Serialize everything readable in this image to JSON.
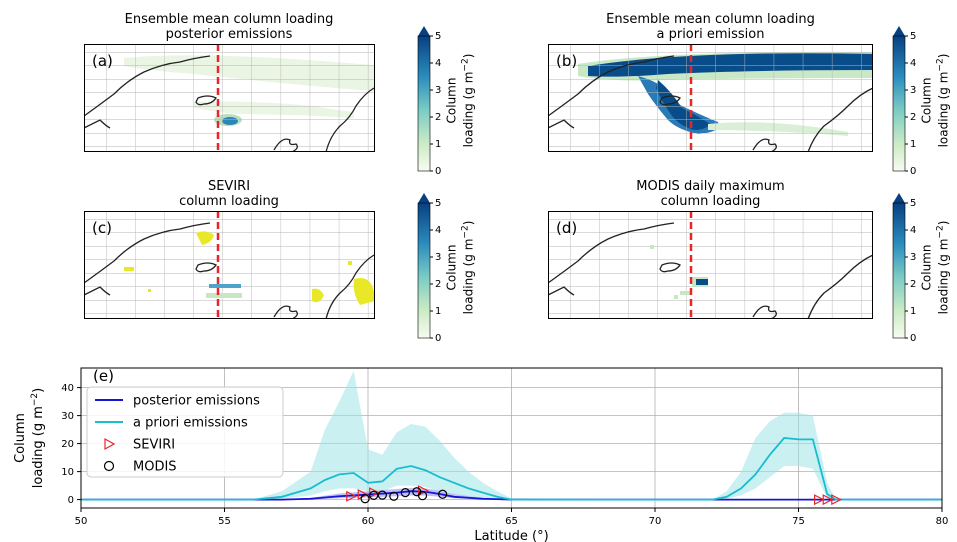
{
  "panels": [
    {
      "id": "a",
      "title": "Ensemble mean column loading\nposterior emissions",
      "panel_label": "(a)",
      "colorbar_label": "Column\nloading (g m",
      "colorbar_label_sup": "−2",
      "colorbar_ticks": [
        "0",
        "1",
        "2",
        "3",
        "4",
        "5"
      ]
    },
    {
      "id": "b",
      "title": "Ensemble mean column loading\na priori emission",
      "panel_label": "(b)",
      "colorbar_label": "Column\nloading (g m",
      "colorbar_label_sup": "−2",
      "colorbar_ticks": [
        "0",
        "1",
        "2",
        "3",
        "4",
        "5"
      ]
    },
    {
      "id": "c",
      "title": "SEVIRI\ncolumn loading",
      "panel_label": "(c)",
      "colorbar_label": "Column\nloading (g m",
      "colorbar_label_sup": "−2",
      "colorbar_ticks": [
        "0",
        "1",
        "2",
        "3",
        "4",
        "5"
      ]
    },
    {
      "id": "d",
      "title": "MODIS daily maximum\ncolumn loading",
      "panel_label": "(d)",
      "colorbar_label": "Column\nloading (g m",
      "colorbar_label_sup": "−2",
      "colorbar_ticks": [
        "0",
        "1",
        "2",
        "3",
        "4",
        "5"
      ]
    }
  ],
  "chart_data": {
    "type": "line",
    "panel_label": "(e)",
    "xlabel": "Latitude (°)",
    "ylabel_line1": "Column",
    "ylabel_line2": "loading (g m",
    "ylabel_sup": "−2",
    "xlim": [
      50,
      80
    ],
    "ylim": [
      -3,
      47
    ],
    "x_ticks": [
      50,
      55,
      60,
      65,
      70,
      75,
      80
    ],
    "y_ticks": [
      0,
      10,
      20,
      30,
      40
    ],
    "grid": true,
    "legend_position": "top-left",
    "series": [
      {
        "name": "posterior emissions",
        "style": "line",
        "color": "#1515d6",
        "x": [
          50,
          57,
          58,
          59,
          60,
          61,
          61.5,
          62,
          62.5,
          63,
          64,
          65,
          80
        ],
        "y": [
          0,
          0,
          0.3,
          1.2,
          1.8,
          2.5,
          3.0,
          2.8,
          2.0,
          1.0,
          0.3,
          0,
          0
        ],
        "band_lower": [
          0,
          0,
          0.1,
          0.5,
          0.8,
          1.2,
          1.5,
          1.4,
          1.0,
          0.5,
          0.1,
          0,
          0
        ],
        "band_upper": [
          0,
          0,
          0.6,
          2.2,
          3.0,
          3.8,
          4.2,
          4.0,
          3.2,
          2.0,
          0.6,
          0,
          0
        ],
        "band_color": "#8c8cf0"
      },
      {
        "name": "a priori emissions",
        "style": "line",
        "color": "#17becf",
        "x": [
          50,
          56,
          57,
          58,
          58.5,
          59,
          59.5,
          60,
          60.5,
          61,
          61.5,
          62,
          62.5,
          63,
          63.5,
          64,
          64.5,
          65,
          72,
          72.5,
          73,
          73.5,
          74,
          74.5,
          75,
          75.5,
          76,
          76.3,
          80
        ],
        "y": [
          0,
          0,
          1,
          4,
          7,
          9,
          9.5,
          6,
          6.5,
          11,
          12,
          10.5,
          8,
          6,
          4,
          2.5,
          1,
          0,
          0,
          1,
          4,
          9,
          16,
          22,
          21.5,
          21.5,
          2,
          0,
          0
        ],
        "band_lower": [
          0,
          0,
          0.3,
          1.5,
          3,
          4,
          4,
          3,
          3,
          5,
          5,
          4.5,
          3,
          2,
          1,
          0.5,
          0.2,
          0,
          0,
          0.3,
          1.5,
          4,
          8,
          12,
          12,
          11,
          0.5,
          0,
          0
        ],
        "band_upper": [
          0,
          0,
          3,
          10,
          25,
          35,
          46,
          18,
          16,
          24,
          27,
          26,
          21,
          15,
          10,
          6,
          3,
          0.5,
          0,
          3,
          10,
          22,
          28,
          31,
          31,
          30,
          6,
          0,
          0
        ],
        "band_color": "#9fe3e8"
      },
      {
        "name": "SEVIRI",
        "style": "marker",
        "marker": "triangle-right",
        "color": "#e8262a",
        "x": [
          59.4,
          59.8,
          60.2,
          61.9,
          75.7,
          76.0,
          76.3
        ],
        "y": [
          1.2,
          1.8,
          2.5,
          3.2,
          0,
          0,
          0
        ]
      },
      {
        "name": "MODIS",
        "style": "marker",
        "marker": "circle",
        "color": "#000000",
        "x": [
          59.9,
          60.2,
          60.5,
          60.9,
          61.3,
          61.7,
          61.9,
          62.6
        ],
        "y": [
          0.3,
          1.5,
          1.6,
          1.2,
          2.5,
          2.8,
          1.4,
          1.9
        ]
      }
    ]
  }
}
